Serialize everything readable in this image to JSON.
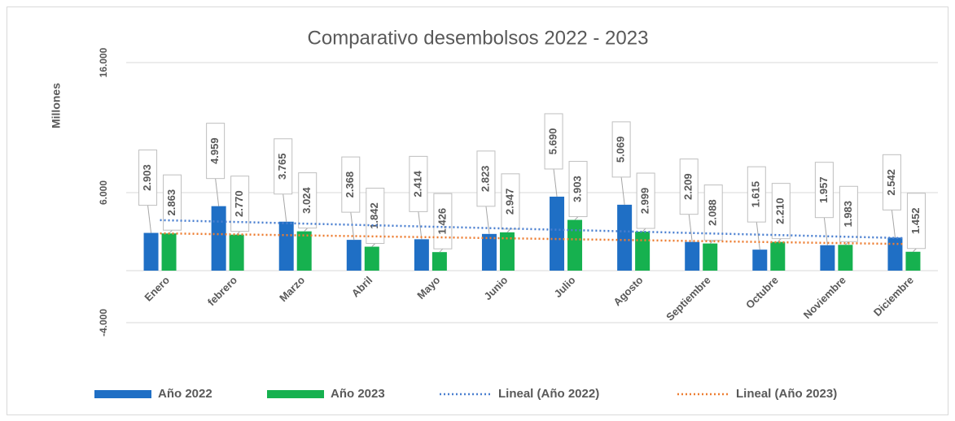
{
  "chart_data": {
    "type": "bar",
    "title": "Comparativo desembolsos 2022 - 2023",
    "y_label": "Millones",
    "categories": [
      "Enero",
      "febrero",
      "Marzo",
      "Abril",
      "Mayo",
      "Junio",
      "Julio",
      "Agosto",
      "Septiembre",
      "Octubre",
      "Noviembre",
      "Diciembre"
    ],
    "series": [
      {
        "name": "Año 2022",
        "color": "#1f6fc5",
        "values": [
          2903,
          4959,
          3765,
          2368,
          2414,
          2823,
          5690,
          5069,
          2209,
          1615,
          1957,
          2542
        ],
        "value_labels": [
          "2.903",
          "4.959",
          "3.765",
          "2.368",
          "2.414",
          "2.823",
          "5.690",
          "5.069",
          "2.209",
          "1.615",
          "1.957",
          "2.542"
        ],
        "trendline": {
          "name": "Lineal (Año 2022)",
          "color": "#4a7fd0"
        }
      },
      {
        "name": "Año 2023",
        "color": "#16b14f",
        "values": [
          2863,
          2770,
          3024,
          1842,
          1426,
          2947,
          3903,
          2999,
          2088,
          2210,
          1983,
          1452
        ],
        "value_labels": [
          "2.863",
          "2.770",
          "3.024",
          "1.842",
          "1.426",
          "2.947",
          "3.903",
          "2.999",
          "2.088",
          "2.210",
          "1.983",
          "1.452"
        ],
        "trendline": {
          "name": "Lineal (Año 2023)",
          "color": "#ed7d31"
        }
      }
    ],
    "ylim": [
      -4000,
      16000
    ],
    "yticks": [
      {
        "value": -4000,
        "label": "-4.000"
      },
      {
        "value": 6000,
        "label": "6.000"
      },
      {
        "value": 16000,
        "label": "16.000"
      }
    ],
    "grid": true,
    "legend": "bottom"
  }
}
